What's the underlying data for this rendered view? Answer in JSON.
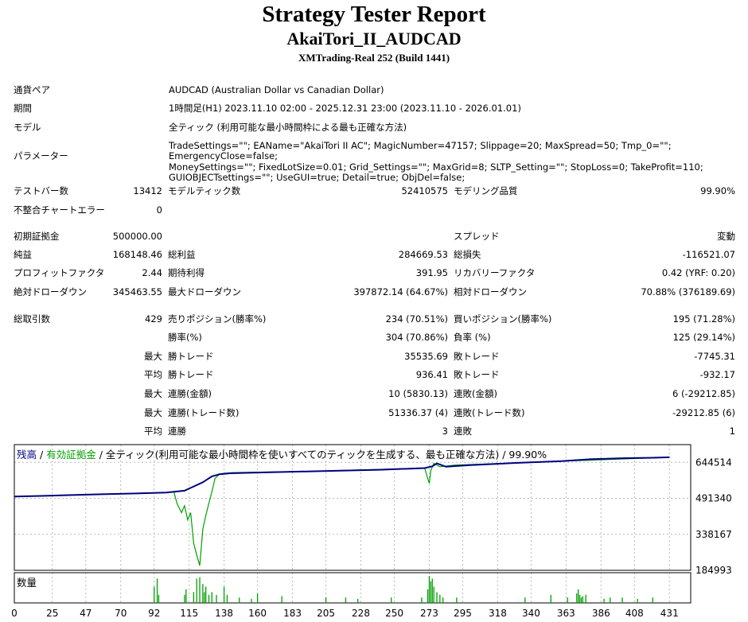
{
  "header": {
    "title": "Strategy Tester Report",
    "subtitle": "AkaiTori_II_AUDCAD",
    "build": "XMTrading-Real 252 (Build 1441)"
  },
  "info": {
    "symbol_label": "通貨ペア",
    "symbol_value": "AUDCAD (Australian Dollar vs Canadian Dollar)",
    "period_label": "期間",
    "period_value": "1時間足(H1) 2023.11.10 02:00 - 2025.12.31 23:00 (2023.11.10 - 2026.01.01)",
    "model_label": "モデル",
    "model_value": "全ティック (利用可能な最小時間枠による最も正確な方法)",
    "params_label": "パラメーター",
    "params_lines": [
      "TradeSettings=\"\"; EAName=\"AkaiTori II AC\"; MagicNumber=47157; Slippage=20; MaxSpread=50; Tmp_0=\"\"; EmergencyClose=false;",
      "MoneySettings=\"\"; FixedLotSize=0.01; Grid_Settings=\"\"; MaxGrid=8; SLTP_Setting=\"\"; StopLoss=0; TakeProfit=110;",
      "GUIOBJECTsettings=\"\"; UseGUI=true; Detail=true; ObjDel=false;"
    ]
  },
  "stats": {
    "bars_label": "テストバー数",
    "bars_value": "13412",
    "ticks_label": "モデルティック数",
    "ticks_value": "52410575",
    "quality_label": "モデリング品質",
    "quality_value": "99.90%",
    "mismatch_label": "不整合チャートエラー",
    "mismatch_value": "0",
    "deposit_label": "初期証拠金",
    "deposit_value": "500000.00",
    "spread_label": "スプレッド",
    "spread_value": "変動",
    "net_label": "純益",
    "net_value": "168148.46",
    "gross_profit_label": "総利益",
    "gross_profit_value": "284669.53",
    "gross_loss_label": "総損失",
    "gross_loss_value": "-116521.07",
    "pf_label": "プロフィットファクタ",
    "pf_value": "2.44",
    "expected_label": "期待利得",
    "expected_value": "391.95",
    "recovery_label": "リカバリーファクタ",
    "recovery_value": "0.42 (YRF: 0.20)",
    "abs_dd_label": "絶対ドローダウン",
    "abs_dd_value": "345463.55",
    "max_dd_label": "最大ドローダウン",
    "max_dd_value": "397872.14 (64.67%)",
    "rel_dd_label": "相対ドローダウン",
    "rel_dd_value": "70.88% (376189.69)",
    "total_trades_label": "総取引数",
    "total_trades_value": "429",
    "short_label": "売りポジション(勝率%)",
    "short_value": "234 (70.51%)",
    "long_label": "買いポジション(勝率%)",
    "long_value": "195 (71.28%)",
    "win_rate_label": "勝率(%)",
    "win_rate_value": "304 (70.86%)",
    "loss_rate_label": "負率 (%)",
    "loss_rate_value": "125 (29.14%)",
    "max_word": "最大",
    "avg_word": "平均",
    "largest_win_label": "勝トレード",
    "largest_win_value": "35535.69",
    "largest_loss_label": "敗トレード",
    "largest_loss_value": "-7745.31",
    "avg_win_label": "勝トレード",
    "avg_win_value": "936.41",
    "avg_loss_label": "敗トレード",
    "avg_loss_value": "-932.17",
    "max_consec_win_label": "連勝(金額)",
    "max_consec_win_value": "10 (5830.13)",
    "max_consec_loss_label": "連敗(金額)",
    "max_consec_loss_value": "6 (-29212.85)",
    "max_consec_profit_label": "連勝(トレード数)",
    "max_consec_profit_value": "51336.37 (4)",
    "max_consec_lossamt_label": "連敗(トレード数)",
    "max_consec_lossamt_value": "-29212.85 (6)",
    "avg_consec_win_label": "連勝",
    "avg_consec_win_value": "3",
    "avg_consec_loss_label": "連敗",
    "avg_consec_loss_value": "1"
  },
  "chart_data": {
    "type": "line",
    "legend": {
      "balance": "残高",
      "sep1": "/",
      "equity": "有効証拠金",
      "rest": "/ 全ティック(利用可能な最小時間枠を使いすべてのティックを生成する、最も正確な方法) / 99.90%"
    },
    "colors": {
      "balance": "#00007f",
      "equity": "#00a000",
      "volume": "#00a000",
      "grid": "#b8b8b8",
      "legend_text": "#000080"
    },
    "ylim": [
      184993,
      720000
    ],
    "y_ticks": [
      "644514",
      "491340",
      "338167",
      "184993"
    ],
    "x_ticks": [
      "0",
      "25",
      "47",
      "70",
      "92",
      "115",
      "138",
      "160",
      "183",
      "205",
      "228",
      "250",
      "273",
      "295",
      "318",
      "340",
      "363",
      "386",
      "408",
      "431"
    ],
    "xlim": [
      0,
      445
    ],
    "volume_label": "数量",
    "series": [
      {
        "name": "残高",
        "x": [
          0,
          20,
          40,
          60,
          80,
          100,
          112,
          118,
          124,
          130,
          135,
          142,
          160,
          200,
          240,
          270,
          275,
          278,
          284,
          300,
          330,
          360,
          380,
          400,
          420,
          431
        ],
        "values": [
          499000,
          502000,
          506000,
          509000,
          512000,
          516000,
          524000,
          542000,
          560000,
          585000,
          594000,
          598000,
          601000,
          607000,
          613000,
          620000,
          628000,
          640000,
          626000,
          633000,
          642000,
          650000,
          658000,
          662000,
          664000,
          666000
        ]
      },
      {
        "name": "有効証拠金",
        "x": [
          0,
          100,
          105,
          107,
          110,
          112,
          114,
          116,
          118,
          120,
          122,
          124,
          126,
          128,
          130,
          132,
          135,
          138,
          145,
          200,
          270,
          272,
          273,
          274,
          276,
          280,
          290,
          330,
          431
        ],
        "values": [
          499000,
          516000,
          518000,
          470000,
          430000,
          460000,
          400000,
          430000,
          300000,
          250000,
          205000,
          360000,
          420000,
          470000,
          520000,
          575000,
          595000,
          598000,
          601000,
          607000,
          620000,
          575000,
          555000,
          610000,
          640000,
          626000,
          633000,
          642000,
          666000
        ]
      }
    ],
    "volume": {
      "x": [
        92,
        94,
        95,
        112,
        113,
        118,
        120,
        122,
        124,
        125,
        126,
        128,
        130,
        133,
        138,
        140,
        148,
        156,
        160,
        176,
        205,
        218,
        226,
        248,
        268,
        272,
        273,
        274,
        275,
        276,
        278,
        280,
        282,
        291,
        336,
        353,
        364,
        370,
        371,
        372,
        373,
        374,
        376,
        388,
        392,
        400,
        410,
        420
      ],
      "values": [
        0.6,
        0.9,
        0.3,
        0.3,
        0.5,
        0.4,
        0.9,
        0.95,
        0.7,
        0.4,
        0.6,
        0.3,
        0.4,
        0.3,
        0.6,
        0.3,
        0.2,
        0.15,
        0.35,
        0.25,
        0.2,
        0.2,
        0.15,
        0.2,
        0.2,
        0.5,
        1.0,
        0.8,
        0.9,
        0.6,
        0.4,
        0.3,
        0.2,
        0.2,
        0.2,
        0.3,
        0.2,
        0.35,
        0.5,
        0.3,
        0.2,
        0.25,
        0.3,
        0.15,
        0.2,
        0.2,
        0.15,
        0.2
      ]
    }
  }
}
